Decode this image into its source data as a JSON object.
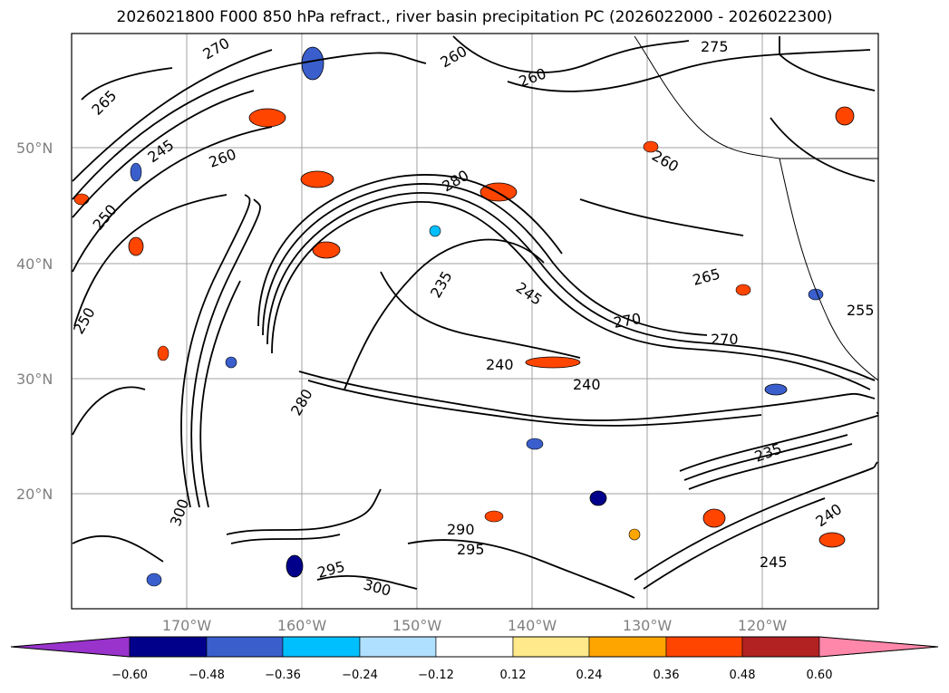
{
  "title": "2026021800 F000 850 hPa refract., river basin precipitation PC (2026022000 - 2026022300)",
  "latitudes": [
    "50°N",
    "40°N",
    "30°N",
    "20°N"
  ],
  "longitudes": [
    "170°W",
    "160°W",
    "150°W",
    "140°W",
    "130°W",
    "120°W"
  ],
  "colorbar": {
    "colors": [
      "#9933cc",
      "#00008b",
      "#3a5fcd",
      "#00bfff",
      "#b0e0ff",
      "#ffffff",
      "#ffe98a",
      "#ffa500",
      "#ff4500",
      "#b22222",
      "#ff88aa"
    ],
    "ticks": [
      "−0.60",
      "−0.48",
      "−0.36",
      "−0.24",
      "−0.12",
      "0.12",
      "0.24",
      "0.36",
      "0.48",
      "0.60"
    ]
  },
  "contour_labels": [
    "270",
    "265",
    "260",
    "260",
    "275",
    "280",
    "250",
    "245",
    "260",
    "235",
    "245",
    "270",
    "240",
    "240",
    "280",
    "270",
    "250",
    "300",
    "290",
    "295",
    "295",
    "300",
    "235",
    "240",
    "245",
    "255",
    "265",
    "260"
  ]
}
